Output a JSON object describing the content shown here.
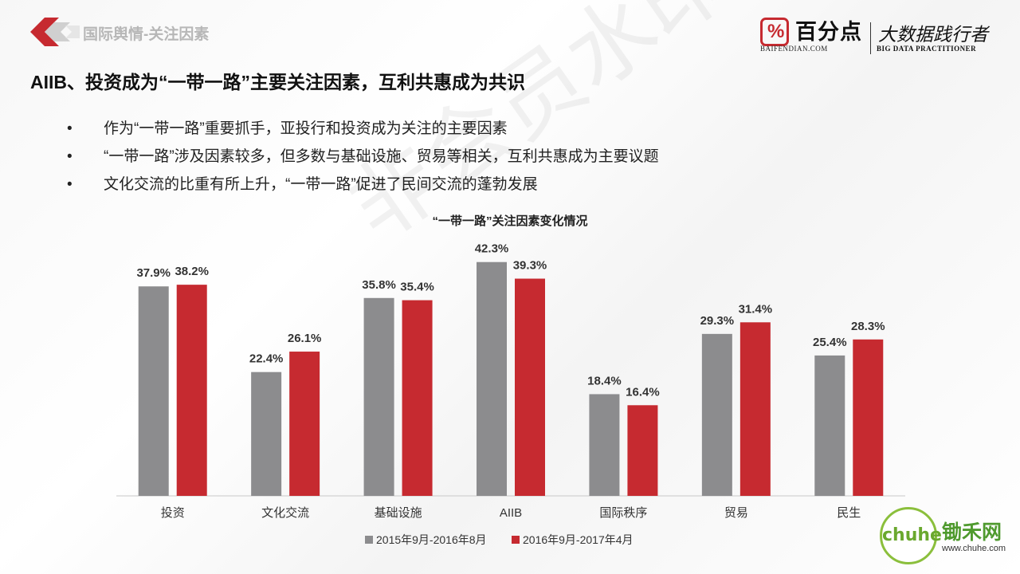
{
  "header": {
    "section_tag": "国际舆情-关注因素",
    "brand": {
      "name": "百分点",
      "url": "BAIFENDIAN.COM",
      "slogan": "大数据践行者",
      "slogan_en": "BIG DATA PRACTITIONER"
    }
  },
  "headline": "AIIB、投资成为“一带一路”主要关注因素，互利共惠成为共识",
  "bullets": [
    "作为“一带一路”重要抓手，亚投行和投资成为关注的主要因素",
    "“一带一路”涉及因素较多，但多数与基础设施、贸易等相关，互利共惠成为主要议题",
    "文化交流的比重有所上升，“一带一路”促进了民间交流的蓬勃发展"
  ],
  "watermark": "非会员水印",
  "footer": {
    "site_name": "锄禾网",
    "site_url": "www.chuhe.com",
    "badge_text": "chuhe"
  },
  "colors": {
    "accent": "#c62a30",
    "series_gray": "#8c8c8e",
    "series_red": "#c62a30",
    "title_red": "#c62a30"
  },
  "chart_data": {
    "type": "bar",
    "title": "“一带一路”关注因素变化情况",
    "categories": [
      "投资",
      "文化交流",
      "基础设施",
      "AIIB",
      "国际秩序",
      "贸易",
      "民生"
    ],
    "series": [
      {
        "name": "2015年9月-2016年8月",
        "values": [
          37.9,
          22.4,
          35.8,
          42.3,
          18.4,
          29.3,
          25.4
        ],
        "labels": [
          "37.9%",
          "22.4%",
          "35.8%",
          "42.3%",
          "18.4%",
          "29.3%",
          "25.4%"
        ]
      },
      {
        "name": "2016年9月-2017年4月",
        "values": [
          38.2,
          26.1,
          35.4,
          39.3,
          16.4,
          31.4,
          28.3
        ],
        "labels": [
          "38.2%",
          "26.1%",
          "35.4%",
          "39.3%",
          "16.4%",
          "31.4%",
          "28.3%"
        ]
      }
    ],
    "ylim": [
      0,
      45
    ],
    "grid": false,
    "legend": "bottom"
  }
}
